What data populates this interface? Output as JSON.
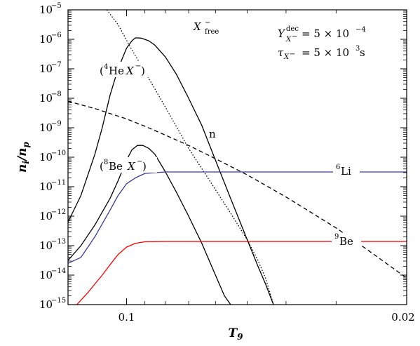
{
  "chart_data": {
    "type": "line",
    "xlabel_main": "T",
    "xlabel_sub": "9",
    "ylabel_main": "n",
    "ylabel_sub1": "i",
    "ylabel_sep": "/",
    "ylabel_sub2": "p",
    "xticks": [
      {
        "value": 0.1,
        "label": "0.1"
      },
      {
        "value": 0.02,
        "label": "0.02"
      }
    ],
    "yticks": [
      {
        "exp": -5,
        "base": "10",
        "label": "−5"
      },
      {
        "exp": -6,
        "base": "10",
        "label": "−6"
      },
      {
        "exp": -7,
        "base": "10",
        "label": "−7"
      },
      {
        "exp": -8,
        "base": "10",
        "label": "−8"
      },
      {
        "exp": -9,
        "base": "10",
        "label": "−9"
      },
      {
        "exp": -10,
        "base": "10",
        "label": "−10"
      },
      {
        "exp": -11,
        "base": "10",
        "label": "−11"
      },
      {
        "exp": -12,
        "base": "10",
        "label": "−12"
      },
      {
        "exp": -13,
        "base": "10",
        "label": "−13"
      },
      {
        "exp": -14,
        "base": "10",
        "label": "−14"
      },
      {
        "exp": -15,
        "base": "10",
        "label": "−15"
      }
    ],
    "xlim": [
      0.14,
      0.02
    ],
    "xscale": "log-reversed",
    "ylim_log10": [
      -15,
      -5
    ],
    "yscale": "log",
    "series": [
      {
        "name": "X−free",
        "color": "#000000",
        "dash": "dotted",
        "x": [
          0.112,
          0.105,
          0.098,
          0.09,
          0.08,
          0.07,
          0.06,
          0.055,
          0.05,
          0.047,
          0.045,
          0.043
        ],
        "log_y": [
          -5.0,
          -5.5,
          -6.25,
          -7.1,
          -8.3,
          -9.7,
          -11.1,
          -11.9,
          -12.8,
          -13.5,
          -14.1,
          -15.0
        ]
      },
      {
        "name": "(4HeX−)",
        "color": "#000000",
        "dash": "solid",
        "x": [
          0.14,
          0.13,
          0.12,
          0.115,
          0.11,
          0.105,
          0.1,
          0.097,
          0.095,
          0.092,
          0.088,
          0.085,
          0.08,
          0.075,
          0.07,
          0.065,
          0.06,
          0.055,
          0.05,
          0.047,
          0.045,
          0.043
        ],
        "log_y": [
          -12.2,
          -11.3,
          -9.9,
          -9.0,
          -7.9,
          -7.0,
          -6.3,
          -6.05,
          -5.95,
          -5.96,
          -6.05,
          -6.2,
          -6.6,
          -7.2,
          -8.0,
          -8.9,
          -10.1,
          -11.4,
          -12.8,
          -13.7,
          -14.3,
          -15.0
        ]
      },
      {
        "name": "(8BeX−)",
        "color": "#000000",
        "dash": "solid",
        "x": [
          0.14,
          0.13,
          0.12,
          0.11,
          0.105,
          0.1,
          0.097,
          0.094,
          0.091,
          0.088,
          0.085,
          0.08,
          0.075,
          0.07,
          0.065,
          0.06,
          0.057,
          0.055
        ],
        "log_y": [
          -13.5,
          -13.0,
          -12.3,
          -11.4,
          -10.8,
          -10.1,
          -9.75,
          -9.6,
          -9.6,
          -9.7,
          -9.9,
          -10.5,
          -11.2,
          -12.0,
          -12.9,
          -14.0,
          -14.7,
          -15.0
        ]
      },
      {
        "name": "n",
        "color": "#000000",
        "dash": "dashed",
        "x": [
          0.14,
          0.12,
          0.1,
          0.09,
          0.08,
          0.07,
          0.06,
          0.05,
          0.04,
          0.03,
          0.025,
          0.02
        ],
        "log_y": [
          -8.1,
          -8.35,
          -8.7,
          -8.95,
          -9.25,
          -9.6,
          -10.05,
          -10.6,
          -11.35,
          -12.4,
          -13.15,
          -14.1
        ]
      },
      {
        "name": "6Li",
        "color": "#3a3a9a",
        "dash": "solid",
        "x": [
          0.14,
          0.13,
          0.12,
          0.11,
          0.105,
          0.1,
          0.095,
          0.09,
          0.08,
          0.06,
          0.04,
          0.02
        ],
        "log_y": [
          -13.6,
          -13.4,
          -12.7,
          -11.8,
          -11.3,
          -10.9,
          -10.7,
          -10.55,
          -10.5,
          -10.5,
          -10.5,
          -10.5
        ]
      },
      {
        "name": "9Be",
        "color": "#ff0000",
        "dash": "solid",
        "x": [
          0.133,
          0.125,
          0.12,
          0.115,
          0.11,
          0.105,
          0.1,
          0.095,
          0.09,
          0.08,
          0.06,
          0.04,
          0.02
        ],
        "log_y": [
          -15.0,
          -14.6,
          -14.3,
          -14.0,
          -13.65,
          -13.3,
          -13.05,
          -12.92,
          -12.87,
          -12.86,
          -12.86,
          -12.86,
          -12.86
        ]
      }
    ],
    "annotations": {
      "xfree_main": "X",
      "xfree_sup": "−",
      "xfree_sub": "free",
      "yield_lhs": "Y",
      "yield_sup": "dec",
      "yield_sub": "X",
      "yield_sub_sup": "−",
      "yield_rhs": "= 5 × 10",
      "yield_exp": "−4",
      "tau_lhs": "τ",
      "tau_sub": "X",
      "tau_sub_sup": "−",
      "tau_rhs": "= 5 × 10",
      "tau_exp": "3",
      "tau_unit": " s",
      "he_open": "(",
      "he_mass": "4",
      "he_body": "He",
      "he_x": "X",
      "he_sup": "−",
      "he_close": ")",
      "be8_open": "(",
      "be8_mass": "8",
      "be8_body": "Be",
      "be8_x": "X",
      "be8_sup": "−",
      "be8_close": ")",
      "n_label": "n",
      "li_mass": "6",
      "li_body": "Li",
      "be9_mass": "9",
      "be9_body": "Be"
    }
  }
}
